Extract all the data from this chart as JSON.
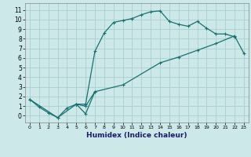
{
  "title": "",
  "xlabel": "Humidex (Indice chaleur)",
  "bg_color": "#cde8e8",
  "grid_color": "#aacfcf",
  "line_color": "#1a7070",
  "xlim": [
    -0.5,
    23.5
  ],
  "ylim": [
    -0.7,
    11.7
  ],
  "xticks": [
    0,
    1,
    2,
    3,
    4,
    5,
    6,
    7,
    8,
    9,
    10,
    11,
    12,
    13,
    14,
    15,
    16,
    17,
    18,
    19,
    20,
    21,
    22,
    23
  ],
  "yticks": [
    0,
    1,
    2,
    3,
    4,
    5,
    6,
    7,
    8,
    9,
    10,
    11
  ],
  "line1_x": [
    0,
    1,
    2,
    3,
    4,
    5,
    6,
    7,
    8,
    9,
    10,
    11,
    12,
    13,
    14,
    15,
    16,
    17,
    18,
    19,
    20,
    21,
    22
  ],
  "line1_y": [
    1.7,
    0.9,
    0.3,
    -0.2,
    0.8,
    1.2,
    1.2,
    6.7,
    8.6,
    9.7,
    9.9,
    10.1,
    10.5,
    10.8,
    10.9,
    9.8,
    9.5,
    9.3,
    9.8,
    9.1,
    8.5,
    8.5,
    8.2
  ],
  "line2_x": [
    0,
    3,
    5,
    6,
    7,
    10,
    14,
    16,
    18,
    20,
    22,
    23
  ],
  "line2_y": [
    1.7,
    -0.2,
    1.2,
    1.0,
    2.5,
    3.2,
    5.5,
    6.1,
    6.8,
    7.5,
    8.3,
    6.5
  ],
  "line3_x": [
    5,
    6,
    7
  ],
  "line3_y": [
    1.2,
    0.2,
    2.5
  ]
}
